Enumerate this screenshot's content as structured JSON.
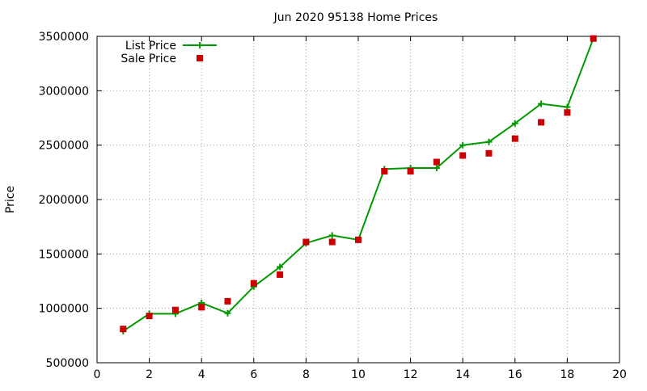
{
  "chart_data": {
    "type": "line",
    "title": "Jun 2020 95138 Home Prices",
    "xlabel": "",
    "ylabel": "Price",
    "xlim": [
      0,
      20
    ],
    "ylim": [
      500000,
      3500000
    ],
    "xticks": [
      0,
      2,
      4,
      6,
      8,
      10,
      12,
      14,
      16,
      18,
      20
    ],
    "yticks": [
      500000,
      1000000,
      1500000,
      2000000,
      2500000,
      3000000,
      3500000
    ],
    "grid": true,
    "legend_position": "top-left",
    "series": [
      {
        "name": "List Price",
        "style": "line-with-plus-markers",
        "color": "#009900",
        "x": [
          1,
          2,
          3,
          4,
          5,
          6,
          7,
          8,
          9,
          10,
          11,
          12,
          13,
          14,
          15,
          16,
          17,
          18,
          19
        ],
        "values": [
          790000,
          950000,
          950000,
          1050000,
          955000,
          1200000,
          1380000,
          1600000,
          1670000,
          1630000,
          2280000,
          2290000,
          2290000,
          2500000,
          2530000,
          2700000,
          2880000,
          2850000,
          3480000
        ]
      },
      {
        "name": "Sale Price",
        "style": "square-markers",
        "color": "#cc0000",
        "x": [
          1,
          2,
          3,
          4,
          5,
          6,
          7,
          8,
          9,
          10,
          11,
          12,
          13,
          14,
          15,
          16,
          17,
          18,
          19
        ],
        "values": [
          810000,
          930000,
          985000,
          1010000,
          1065000,
          1230000,
          1310000,
          1610000,
          1610000,
          1630000,
          2260000,
          2260000,
          2345000,
          2405000,
          2425000,
          2560000,
          2710000,
          2800000,
          3480000
        ]
      }
    ]
  }
}
